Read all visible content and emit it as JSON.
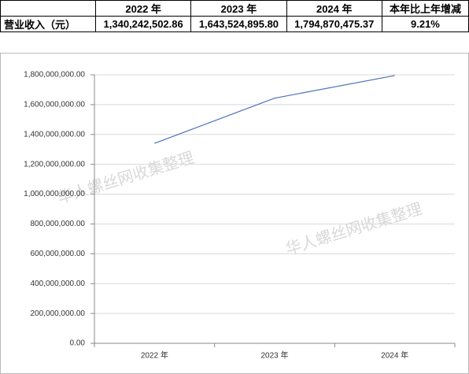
{
  "table": {
    "header": [
      "",
      "2022 年",
      "2023 年",
      "2024 年",
      "本年比上年增减"
    ],
    "rows": [
      [
        "营业收入（元）",
        "1,340,242,502.86",
        "1,643,524,895.80",
        "1,794,870,475.37",
        "9.21%"
      ]
    ]
  },
  "watermarks": [
    "华人螺丝网收集整理",
    "华人螺丝网收集整理"
  ],
  "chart_data": {
    "type": "line",
    "categories": [
      "2022 年",
      "2023 年",
      "2024 年"
    ],
    "series": [
      {
        "name": "营业收入（元）",
        "color": "#4a72b8",
        "values": [
          1340242502.86,
          1643524895.8,
          1794870475.37
        ]
      }
    ],
    "ylim": [
      0,
      1800000000
    ],
    "yticks": [
      {
        "value": 0,
        "label": "0.00"
      },
      {
        "value": 200000000,
        "label": "200,000,000.00"
      },
      {
        "value": 400000000,
        "label": "400,000,000.00"
      },
      {
        "value": 600000000,
        "label": "600,000,000.00"
      },
      {
        "value": 800000000,
        "label": "800,000,000.00"
      },
      {
        "value": 1000000000,
        "label": "1,000,000,000.00"
      },
      {
        "value": 1200000000,
        "label": "1,200,000,000.00"
      },
      {
        "value": 1400000000,
        "label": "1,400,000,000.00"
      },
      {
        "value": 1600000000,
        "label": "1,600,000,000.00"
      },
      {
        "value": 1800000000,
        "label": "1,800,000,000.00"
      }
    ],
    "grid": true
  }
}
